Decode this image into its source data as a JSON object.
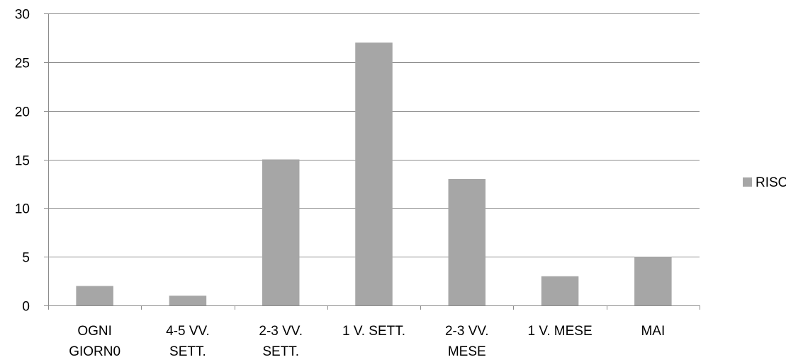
{
  "chart_data": {
    "type": "bar",
    "categories": [
      [
        "OGNI",
        "GIORN0"
      ],
      [
        "4-5 VV.",
        "SETT."
      ],
      [
        "2-3 VV.",
        "SETT."
      ],
      [
        "1 V. SETT."
      ],
      [
        "2-3 VV.",
        "MESE"
      ],
      [
        "1 V. MESE"
      ],
      [
        "MAI"
      ]
    ],
    "series": [
      {
        "name": "RISO",
        "values": [
          2,
          1,
          15,
          27,
          13,
          3,
          5
        ],
        "color": "#a6a6a6"
      }
    ],
    "ylim": [
      0,
      30
    ],
    "yticks": [
      0,
      5,
      10,
      15,
      20,
      25,
      30
    ],
    "grid": true,
    "legend_position": "right",
    "colors": {
      "bar": "#a6a6a6",
      "grid": "#8c8c8c",
      "text": "#000000"
    }
  }
}
